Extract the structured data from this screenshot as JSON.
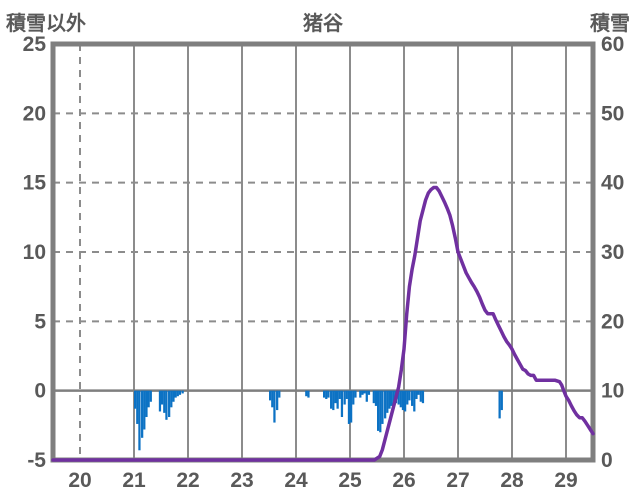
{
  "header": {
    "left_axis_title": "積雪以外",
    "chart_title": "猪谷",
    "right_axis_title": "積雪"
  },
  "colors": {
    "bar_blue": "#0C72C4",
    "line_purple": "#7030A0",
    "grid_gray": "#8C8C8C",
    "border_gray": "#7F7F7F",
    "text_gray": "#595959"
  },
  "chart_data": {
    "type": "combo",
    "title": "猪谷",
    "x_axis": {
      "unit": "day-of-month",
      "min": 19.5,
      "max": 29.5,
      "ticks": [
        20,
        21,
        22,
        23,
        24,
        25,
        26,
        27,
        28,
        29
      ]
    },
    "left_axis": {
      "title": "積雪以外",
      "min": -5,
      "max": 25,
      "ticks": [
        25,
        20,
        15,
        10,
        5,
        0,
        -5
      ]
    },
    "right_axis": {
      "title": "積雪",
      "min": 0,
      "max": 60,
      "ticks": [
        60,
        50,
        40,
        30,
        20,
        10,
        0
      ]
    },
    "grid": {
      "horizontal_dashed_left_values": [
        20,
        15,
        10,
        5
      ],
      "horizontal_solid_left_values": [
        0
      ],
      "vertical_dashed_at_ticks": true,
      "vertical_solid_at_halfway": true
    },
    "legend": "none",
    "series": [
      {
        "name": "積雪以外",
        "type": "bar",
        "axis": "left",
        "color": "#0C72C4",
        "bar_width_days": 0.0417,
        "points": [
          [
            21.0,
            -1.3
          ],
          [
            21.04,
            -2.4
          ],
          [
            21.08,
            -4.3
          ],
          [
            21.13,
            -3.4
          ],
          [
            21.17,
            -2.8
          ],
          [
            21.21,
            -1.9
          ],
          [
            21.25,
            -1.2
          ],
          [
            21.29,
            -0.8
          ],
          [
            21.46,
            -1.5
          ],
          [
            21.5,
            -1.0
          ],
          [
            21.54,
            -1.6
          ],
          [
            21.58,
            -2.1
          ],
          [
            21.63,
            -1.9
          ],
          [
            21.67,
            -1.2
          ],
          [
            21.71,
            -0.8
          ],
          [
            21.75,
            -0.5
          ],
          [
            21.79,
            -0.4
          ],
          [
            21.83,
            -0.3
          ],
          [
            21.88,
            -0.2
          ],
          [
            23.5,
            -0.7
          ],
          [
            23.54,
            -1.2
          ],
          [
            23.58,
            -2.3
          ],
          [
            23.63,
            -1.4
          ],
          [
            23.67,
            -0.5
          ],
          [
            24.17,
            -0.4
          ],
          [
            24.21,
            -0.5
          ],
          [
            24.5,
            -0.5
          ],
          [
            24.54,
            -0.6
          ],
          [
            24.58,
            -0.5
          ],
          [
            24.63,
            -1.3
          ],
          [
            24.67,
            -1.4
          ],
          [
            24.71,
            -0.9
          ],
          [
            24.75,
            -1.3
          ],
          [
            24.79,
            -0.6
          ],
          [
            24.83,
            -1.9
          ],
          [
            24.88,
            -1.0
          ],
          [
            24.92,
            -0.6
          ],
          [
            24.96,
            -2.4
          ],
          [
            25.0,
            -2.3
          ],
          [
            25.04,
            -1.0
          ],
          [
            25.08,
            -0.5
          ],
          [
            25.17,
            -0.5
          ],
          [
            25.21,
            -0.3
          ],
          [
            25.25,
            -0.2
          ],
          [
            25.29,
            -0.8
          ],
          [
            25.33,
            -0.3
          ],
          [
            25.42,
            -0.9
          ],
          [
            25.46,
            -1.1
          ],
          [
            25.5,
            -2.9
          ],
          [
            25.54,
            -3.0
          ],
          [
            25.58,
            -2.4
          ],
          [
            25.63,
            -2.0
          ],
          [
            25.67,
            -1.6
          ],
          [
            25.71,
            -1.3
          ],
          [
            25.75,
            -1.1
          ],
          [
            25.79,
            -1.0
          ],
          [
            25.83,
            -0.9
          ],
          [
            25.88,
            -1.0
          ],
          [
            25.92,
            -1.2
          ],
          [
            25.96,
            -1.4
          ],
          [
            26.0,
            -1.5
          ],
          [
            26.04,
            -1.0
          ],
          [
            26.08,
            -0.7
          ],
          [
            26.13,
            -1.1
          ],
          [
            26.17,
            -1.5
          ],
          [
            26.21,
            -0.6
          ],
          [
            26.25,
            -0.3
          ],
          [
            26.29,
            -0.8
          ],
          [
            26.33,
            -0.9
          ],
          [
            27.75,
            -2.0
          ],
          [
            27.79,
            -1.4
          ]
        ]
      },
      {
        "name": "積雪",
        "type": "line",
        "axis": "right",
        "color": "#7030A0",
        "points": [
          [
            19.5,
            0
          ],
          [
            25.45,
            0
          ],
          [
            25.55,
            0.5
          ],
          [
            25.6,
            1.5
          ],
          [
            25.65,
            3
          ],
          [
            25.7,
            4.5
          ],
          [
            25.75,
            6
          ],
          [
            25.8,
            7.5
          ],
          [
            25.85,
            9
          ],
          [
            25.9,
            10.5
          ],
          [
            25.95,
            13
          ],
          [
            26.0,
            16
          ],
          [
            26.05,
            21
          ],
          [
            26.1,
            25
          ],
          [
            26.15,
            27.5
          ],
          [
            26.2,
            29.5
          ],
          [
            26.25,
            32
          ],
          [
            26.3,
            34.5
          ],
          [
            26.35,
            36
          ],
          [
            26.4,
            37.5
          ],
          [
            26.45,
            38.5
          ],
          [
            26.5,
            39
          ],
          [
            26.55,
            39.3
          ],
          [
            26.6,
            39.3
          ],
          [
            26.65,
            38.8
          ],
          [
            26.7,
            38
          ],
          [
            26.75,
            37.2
          ],
          [
            26.8,
            36.3
          ],
          [
            26.85,
            35.3
          ],
          [
            26.9,
            33.8
          ],
          [
            26.95,
            32
          ],
          [
            27.0,
            30
          ],
          [
            27.05,
            29
          ],
          [
            27.1,
            28
          ],
          [
            27.15,
            27
          ],
          [
            27.2,
            26.3
          ],
          [
            27.25,
            25.6
          ],
          [
            27.3,
            25
          ],
          [
            27.35,
            24.3
          ],
          [
            27.4,
            23.5
          ],
          [
            27.45,
            22.5
          ],
          [
            27.5,
            21.6
          ],
          [
            27.55,
            21.1
          ],
          [
            27.6,
            21.1
          ],
          [
            27.65,
            21.1
          ],
          [
            27.7,
            20.2
          ],
          [
            27.75,
            19.4
          ],
          [
            27.8,
            18.6
          ],
          [
            27.85,
            17.8
          ],
          [
            27.9,
            17.1
          ],
          [
            27.95,
            16.6
          ],
          [
            28.0,
            16
          ],
          [
            28.05,
            15.2
          ],
          [
            28.1,
            14.5
          ],
          [
            28.15,
            13.8
          ],
          [
            28.2,
            13.1
          ],
          [
            28.25,
            12.9
          ],
          [
            28.3,
            12.4
          ],
          [
            28.35,
            12.2
          ],
          [
            28.4,
            12.2
          ],
          [
            28.45,
            11.5
          ],
          [
            28.5,
            11.5
          ],
          [
            28.6,
            11.5
          ],
          [
            28.7,
            11.5
          ],
          [
            28.8,
            11.5
          ],
          [
            28.88,
            11.3
          ],
          [
            28.92,
            10.8
          ],
          [
            28.96,
            10
          ],
          [
            29.0,
            9.2
          ],
          [
            29.05,
            8.6
          ],
          [
            29.1,
            7.8
          ],
          [
            29.15,
            7.1
          ],
          [
            29.2,
            6.5
          ],
          [
            29.25,
            6.1
          ],
          [
            29.3,
            6.1
          ],
          [
            29.35,
            5.6
          ],
          [
            29.4,
            5.0
          ],
          [
            29.45,
            4.4
          ],
          [
            29.5,
            3.8
          ]
        ]
      }
    ]
  }
}
